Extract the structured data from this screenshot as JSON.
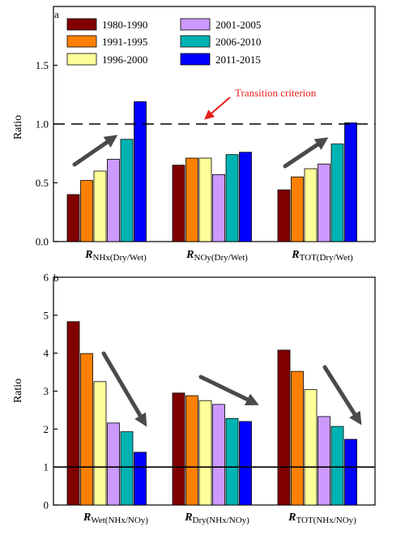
{
  "legend": [
    {
      "label": "1980-1990",
      "color": "#800000"
    },
    {
      "label": "1991-1995",
      "color": "#ff8000"
    },
    {
      "label": "1996-2000",
      "color": "#ffff99"
    },
    {
      "label": "2001-2005",
      "color": "#cc99ff"
    },
    {
      "label": "2006-2010",
      "color": "#00b3b3"
    },
    {
      "label": "2011-2015",
      "color": "#0000ff"
    }
  ],
  "chart_data": [
    {
      "type": "bar",
      "panel_label": "a",
      "ylabel": "Ratio",
      "ylim": [
        0,
        2.0
      ],
      "yticks": [
        "0.0",
        "0.5",
        "1.0",
        "1.5"
      ],
      "reference_line": {
        "value": 1.0,
        "style": "dashed"
      },
      "annotation": {
        "text": "Transition criterion",
        "color": "#e8201a"
      },
      "trend_arrows": [
        "up",
        "none",
        "up"
      ],
      "groups": [
        {
          "label_main": "R",
          "label_sub": "NHx(Dry/Wet)"
        },
        {
          "label_main": "R",
          "label_sub": "NOy(Dry/Wet)"
        },
        {
          "label_main": "R",
          "label_sub": "TOT(Dry/Wet)"
        }
      ],
      "series": [
        {
          "name": "1980-1990",
          "values": [
            0.4,
            0.65,
            0.44
          ]
        },
        {
          "name": "1991-1995",
          "values": [
            0.52,
            0.71,
            0.55
          ]
        },
        {
          "name": "1996-2000",
          "values": [
            0.6,
            0.71,
            0.62
          ]
        },
        {
          "name": "2001-2005",
          "values": [
            0.7,
            0.57,
            0.66
          ]
        },
        {
          "name": "2006-2010",
          "values": [
            0.87,
            0.74,
            0.83
          ]
        },
        {
          "name": "2011-2015",
          "values": [
            1.19,
            0.76,
            1.01
          ]
        }
      ]
    },
    {
      "type": "bar",
      "panel_label": "b",
      "ylabel": "Ratio",
      "ylim": [
        0,
        6
      ],
      "yticks": [
        "0",
        "1",
        "2",
        "3",
        "4",
        "5",
        "6"
      ],
      "reference_line": {
        "value": 1.0,
        "style": "solid"
      },
      "trend_arrows": [
        "down",
        "down",
        "down"
      ],
      "groups": [
        {
          "label_main": "R",
          "label_sub": "Wet(NHx/NOy)"
        },
        {
          "label_main": "R",
          "label_sub": "Dry(NHx/NOy)"
        },
        {
          "label_main": "R",
          "label_sub": "TOT(NHx/NOy)"
        }
      ],
      "series": [
        {
          "name": "1980-1990",
          "values": [
            4.83,
            2.95,
            4.08
          ]
        },
        {
          "name": "1991-1995",
          "values": [
            3.99,
            2.88,
            3.52
          ]
        },
        {
          "name": "1996-2000",
          "values": [
            3.25,
            2.75,
            3.04
          ]
        },
        {
          "name": "2001-2005",
          "values": [
            2.16,
            2.65,
            2.33
          ]
        },
        {
          "name": "2006-2010",
          "values": [
            1.93,
            2.28,
            2.07
          ]
        },
        {
          "name": "2011-2015",
          "values": [
            1.39,
            2.2,
            1.73
          ]
        }
      ]
    }
  ]
}
